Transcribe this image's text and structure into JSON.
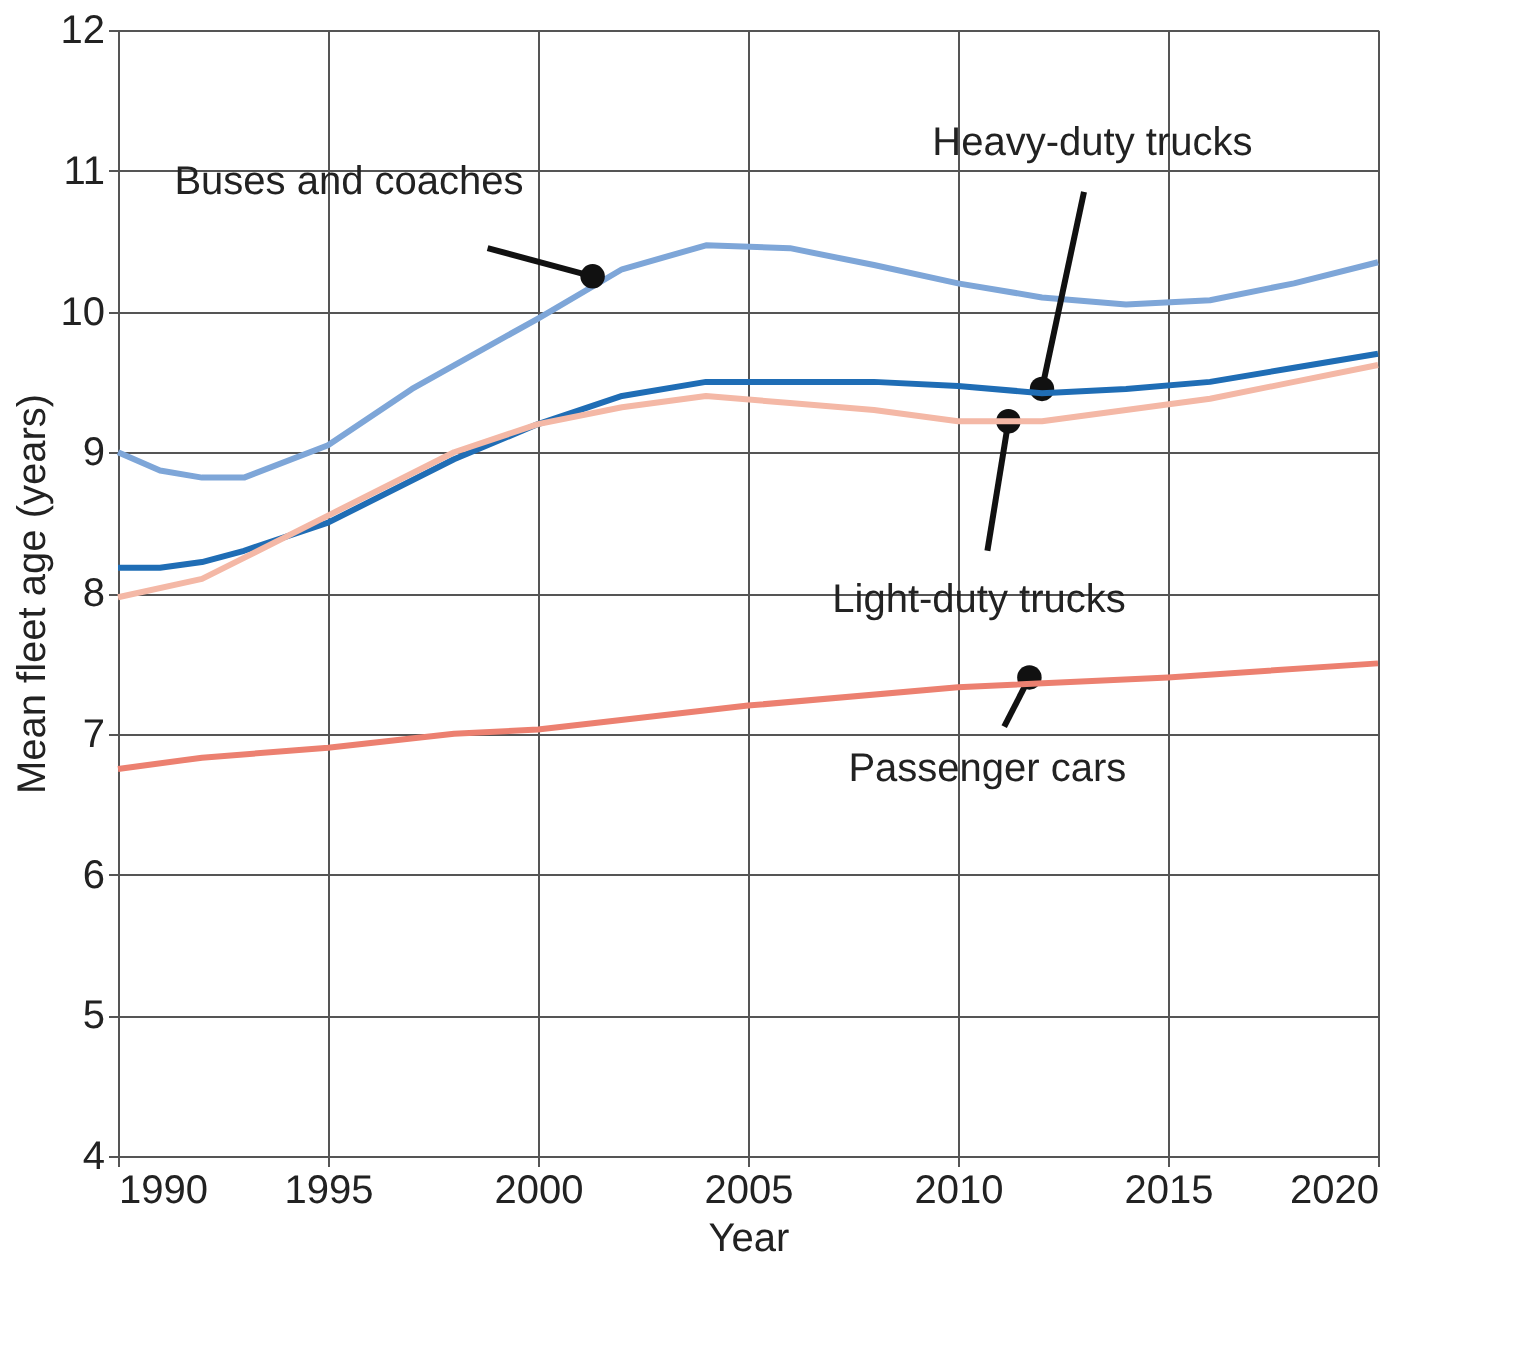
{
  "chart_data": {
    "type": "line",
    "xlabel": "Year",
    "ylabel": "Mean fleet age (years)",
    "xlim": [
      1990,
      2020
    ],
    "xticks": [
      1990,
      1995,
      2000,
      2005,
      2010,
      2015,
      2020
    ],
    "ylim": [
      4,
      12
    ],
    "yticks": [
      4,
      5,
      6,
      7,
      8,
      9,
      10,
      11,
      12
    ],
    "grid": true,
    "marker": "none",
    "line_style": "solid",
    "series": [
      {
        "color": "#7ea6d8",
        "x": [
          1990,
          1991,
          1992,
          1993,
          1995,
          1997,
          2000,
          2002,
          2004,
          2006,
          2008,
          2010,
          2012,
          2014,
          2016,
          2018,
          2020
        ],
        "values": [
          9.0,
          8.87,
          8.82,
          8.82,
          9.05,
          9.45,
          9.95,
          10.3,
          10.47,
          10.45,
          10.33,
          10.2,
          10.1,
          10.05,
          10.08,
          10.2,
          10.35
        ]
      },
      {
        "color": "#1f6db5",
        "x": [
          1990,
          1991,
          1992,
          1993,
          1995,
          1998,
          2000,
          2002,
          2004,
          2006,
          2008,
          2010,
          2012,
          2014,
          2016,
          2018,
          2020
        ],
        "values": [
          8.18,
          8.18,
          8.22,
          8.3,
          8.5,
          8.95,
          9.2,
          9.4,
          9.5,
          9.5,
          9.5,
          9.47,
          9.42,
          9.45,
          9.5,
          9.6,
          9.7
        ]
      },
      {
        "color": "#f4b8a6",
        "x": [
          1990,
          1992,
          1993,
          1995,
          1998,
          2000,
          2002,
          2004,
          2006,
          2008,
          2010,
          2012,
          2014,
          2016,
          2018,
          2020
        ],
        "values": [
          7.97,
          8.1,
          8.25,
          8.55,
          9.0,
          9.2,
          9.32,
          9.4,
          9.35,
          9.3,
          9.22,
          9.22,
          9.3,
          9.38,
          9.5,
          9.62
        ]
      },
      {
        "color": "#ec8070",
        "x": [
          1990,
          1992,
          1995,
          1998,
          2000,
          2005,
          2010,
          2015,
          2020
        ],
        "values": [
          6.75,
          6.83,
          6.9,
          7.0,
          7.03,
          7.2,
          7.33,
          7.4,
          7.5
        ]
      }
    ],
    "annotations": [
      {
        "text": "Buses and coaches",
        "x": 2001.3,
        "y": 10.25
      },
      {
        "text": "Heavy-duty trucks",
        "x": 2012,
        "y": 9.45
      },
      {
        "text": "Light-duty trucks",
        "x": 2011.2,
        "y": 9.22
      },
      {
        "text": "Passenger cars",
        "x": 2011.7,
        "y": 7.4
      }
    ]
  }
}
